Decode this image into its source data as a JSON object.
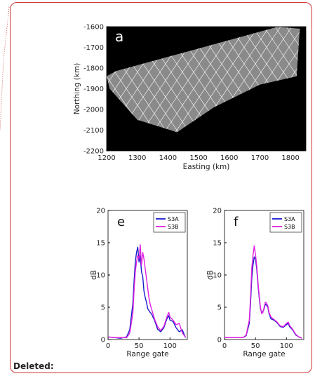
{
  "deleted_label": "Deleted:",
  "chart_data": [
    {
      "type": "map",
      "panel_label": "a",
      "xlabel": "Easting (km)",
      "ylabel": "Northing (km)",
      "xlim": [
        1200,
        1850
      ],
      "ylim": [
        -2200,
        -1600
      ],
      "x_ticks": [
        1200,
        1300,
        1400,
        1500,
        1600,
        1700,
        1800
      ],
      "y_ticks": [
        -1600,
        -1700,
        -1800,
        -1900,
        -2000,
        -2100,
        -2200
      ],
      "description_colors": {
        "background": "#000000",
        "tracks": "#ffffff",
        "terrain": "#8a8a8a"
      }
    },
    {
      "type": "line",
      "panel_label": "e",
      "xlabel": "Range gate",
      "ylabel": "dB",
      "xlim": [
        0,
        128
      ],
      "ylim": [
        0,
        20
      ],
      "x_ticks": [
        0,
        50,
        100
      ],
      "y_ticks": [
        0,
        5,
        10,
        15,
        20
      ],
      "legend_position": "top-right",
      "x": [
        0,
        10,
        20,
        30,
        35,
        40,
        42,
        44,
        46,
        48,
        50,
        52,
        54,
        56,
        58,
        60,
        62,
        64,
        66,
        68,
        70,
        75,
        80,
        85,
        90,
        95,
        98,
        100,
        105,
        110,
        115,
        120,
        125
      ],
      "series": [
        {
          "name": "S3A",
          "color": "#1a1acc",
          "values": [
            0.4,
            0.3,
            0.2,
            0.4,
            1.5,
            5.5,
            9,
            12,
            13.5,
            14.3,
            12,
            13,
            10.5,
            9.8,
            7.5,
            6.5,
            5.8,
            4.8,
            4.5,
            4.2,
            4.0,
            3.0,
            1.6,
            1.2,
            1.8,
            3.2,
            3.7,
            3.0,
            2.8,
            1.8,
            1.2,
            1.5,
            0.3
          ]
        },
        {
          "name": "S3B",
          "color": "#e020e0",
          "values": [
            0.4,
            0.3,
            0.3,
            0.3,
            1.0,
            4.0,
            7.5,
            10.5,
            12,
            13,
            12.5,
            14.7,
            11.5,
            13.5,
            12.5,
            11,
            9.5,
            8.0,
            6.5,
            5.5,
            4.8,
            3.2,
            2.0,
            1.4,
            2.0,
            3.5,
            4.2,
            3.5,
            3.0,
            2.3,
            2.5,
            1.0,
            0.4
          ]
        }
      ]
    },
    {
      "type": "line",
      "panel_label": "f",
      "xlabel": "Range gate",
      "ylabel": "dB",
      "xlim": [
        0,
        128
      ],
      "ylim": [
        0,
        20
      ],
      "x_ticks": [
        0,
        50,
        100
      ],
      "y_ticks": [
        0,
        5,
        10,
        15,
        20
      ],
      "legend_position": "top-right",
      "x": [
        0,
        10,
        20,
        30,
        35,
        40,
        42,
        44,
        46,
        48,
        50,
        52,
        54,
        56,
        58,
        60,
        62,
        64,
        66,
        68,
        70,
        72,
        75,
        80,
        85,
        90,
        95,
        100,
        103,
        105,
        110,
        115,
        120,
        125
      ],
      "series": [
        {
          "name": "S3A",
          "color": "#1a1acc",
          "values": [
            0.3,
            0.3,
            0.3,
            0.3,
            0.6,
            2.5,
            5.5,
            9.5,
            11.5,
            12.8,
            12.5,
            11,
            8.5,
            6.5,
            4.8,
            4.2,
            4.3,
            4.8,
            5.5,
            5.3,
            5.0,
            4.0,
            3.2,
            3.0,
            2.6,
            2.0,
            1.9,
            2.3,
            2.5,
            2.0,
            1.5,
            0.7,
            0.4,
            0.2
          ]
        },
        {
          "name": "S3B",
          "color": "#e020e0",
          "values": [
            0.3,
            0.3,
            0.3,
            0.3,
            0.7,
            3.0,
            6.5,
            11,
            13,
            14.5,
            13.2,
            11.5,
            9,
            6.8,
            5.0,
            4.0,
            4.2,
            5.0,
            5.8,
            5.6,
            5.2,
            4.2,
            3.5,
            3.1,
            2.7,
            2.1,
            2.0,
            2.5,
            2.7,
            2.2,
            1.6,
            0.8,
            0.4,
            0.2
          ]
        }
      ]
    }
  ]
}
